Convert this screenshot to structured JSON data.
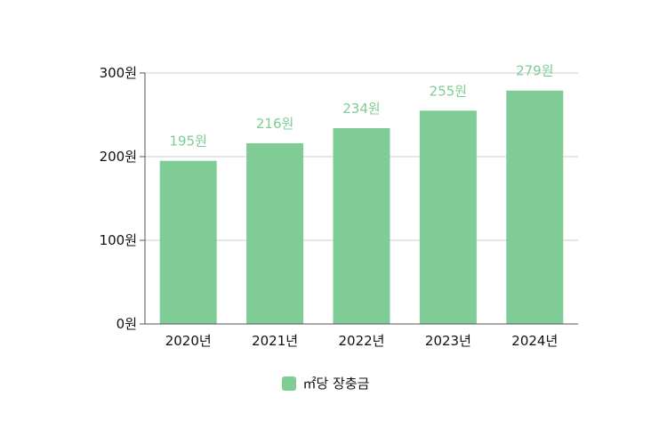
{
  "chart_data": {
    "type": "bar",
    "categories": [
      "2020년",
      "2021년",
      "2022년",
      "2023년",
      "2024년"
    ],
    "series": [
      {
        "name": "㎡당 장충금",
        "values": [
          195,
          216,
          234,
          255,
          279
        ]
      }
    ],
    "data_labels": [
      "195원",
      "216원",
      "234원",
      "255원",
      "279원"
    ],
    "y_ticks": [
      {
        "value": 0,
        "label": "0원"
      },
      {
        "value": 100,
        "label": "100원"
      },
      {
        "value": 200,
        "label": "200원"
      },
      {
        "value": 300,
        "label": "300원"
      }
    ],
    "ylim": [
      0,
      300
    ],
    "grid": true,
    "legend_position": "bottom",
    "title": "",
    "xlabel": "",
    "ylabel": ""
  },
  "colors": {
    "bar": "#80cc97",
    "label": "#80cc97",
    "grid": "#cfcfcf",
    "axis": "#555555"
  }
}
